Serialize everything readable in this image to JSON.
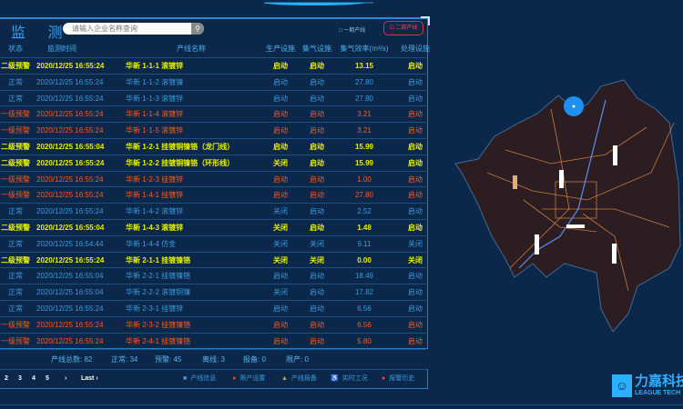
{
  "header": {
    "title": "监 测",
    "search_placeholder": "请输入企业名称查询",
    "search_icon": "search-icon",
    "option_phase1": "□ 一期产线",
    "option_phase2": "☑ 二期产线",
    "option_phase2_checked": true
  },
  "colors": {
    "level2_warning": "#e8f000",
    "level1_warning": "#ff5a1e",
    "normal": "#3a9be0",
    "background": "#0b2749"
  },
  "table": {
    "columns": [
      "状态",
      "监测时间",
      "产线名称",
      "生产设施",
      "集气设施",
      "集气效率(m³/s)",
      "处理设施"
    ],
    "rows": [
      [
        "二级预警",
        "2020/12/25 16:55:24",
        "华新 1-1-1 滚镀锌",
        "启动",
        "启动",
        "13.15",
        "启动"
      ],
      [
        "正常",
        "2020/12/25 16:55:24",
        "华新 1-1-2 滚镀镍",
        "启动",
        "启动",
        "27.80",
        "启动"
      ],
      [
        "正常",
        "2020/12/25 16:55:24",
        "华新 1-1-3 滚镀锌",
        "启动",
        "启动",
        "27.80",
        "启动"
      ],
      [
        "一级预警",
        "2020/12/25 16:55:24",
        "华新 1-1-4 滚镀锌",
        "启动",
        "启动",
        "3.21",
        "启动"
      ],
      [
        "一级预警",
        "2020/12/25 16:55:24",
        "华新 1-1-5 滚镀锌",
        "启动",
        "启动",
        "3.21",
        "启动"
      ],
      [
        "二级预警",
        "2020/12/25 16:55:04",
        "华新 1-2-1 挂镀铜镍铬（龙门线）",
        "启动",
        "启动",
        "15.99",
        "启动"
      ],
      [
        "二级预警",
        "2020/12/25 16:55:24",
        "华新 1-2-2 挂镀铜镍铬（环形线）",
        "关闭",
        "启动",
        "15.99",
        "启动"
      ],
      [
        "一级预警",
        "2020/12/25 16:55:24",
        "华新 1-2-3 挂镀锌",
        "启动",
        "启动",
        "1.00",
        "启动"
      ],
      [
        "一级预警",
        "2020/12/25 16:55:24",
        "华新 1-4-1 挂镀锌",
        "启动",
        "启动",
        "27.80",
        "启动"
      ],
      [
        "正常",
        "2020/12/25 16:55:24",
        "华新 1-4-2 滚镀锌",
        "关闭",
        "启动",
        "2.52",
        "启动"
      ],
      [
        "二级预警",
        "2020/12/25 16:55:04",
        "华新 1-4-3 滚镀锌",
        "关闭",
        "启动",
        "1.48",
        "启动"
      ],
      [
        "正常",
        "2020/12/25 16:54:44",
        "华新 1-4-4 仿金",
        "关闭",
        "关闭",
        "9.11",
        "关闭"
      ],
      [
        "二级预警",
        "2020/12/25 16:55:24",
        "华新 2-1-1 挂镀镍铬",
        "关闭",
        "关闭",
        "0.00",
        "关闭"
      ],
      [
        "正常",
        "2020/12/25 16:55:04",
        "华新 2-2-1 挂镀镍铬",
        "启动",
        "启动",
        "18.49",
        "启动"
      ],
      [
        "正常",
        "2020/12/25 16:55:04",
        "华新 2-2-2 滚镀铜镍",
        "关闭",
        "启动",
        "17.82",
        "启动"
      ],
      [
        "正常",
        "2020/12/25 16:55:24",
        "华新 2-3-1 挂镀锌",
        "启动",
        "启动",
        "6.56",
        "启动"
      ],
      [
        "一级预警",
        "2020/12/25 16:55:24",
        "华新 2-3-2 挂镀镍铬",
        "启动",
        "启动",
        "6.56",
        "启动"
      ],
      [
        "一级预警",
        "2020/12/25 16:55:24",
        "华新 2-4-1 挂镀镍铬",
        "启动",
        "启动",
        "5.80",
        "启动"
      ]
    ]
  },
  "summary": {
    "total": "产线总数: 82",
    "normal": "正常: 34",
    "warning": "预警: 45",
    "offline": "离线: 3",
    "report": "报备: 0",
    "limit": "限产: 0"
  },
  "pagination": [
    "2",
    "3",
    "4",
    "5",
    "›",
    "Last ›"
  ],
  "legend": [
    {
      "icon": "info-icon",
      "label": "产线信息"
    },
    {
      "icon": "limit-icon",
      "label": "限产设置"
    },
    {
      "icon": "warning-triangle-icon",
      "label": "产线报备"
    },
    {
      "icon": "realtime-icon",
      "label": "实时工况"
    },
    {
      "icon": "alarm-history-icon",
      "label": "报警历史"
    }
  ],
  "logo": {
    "cn": "力嘉科技",
    "en": "LEAGUE TECH"
  }
}
